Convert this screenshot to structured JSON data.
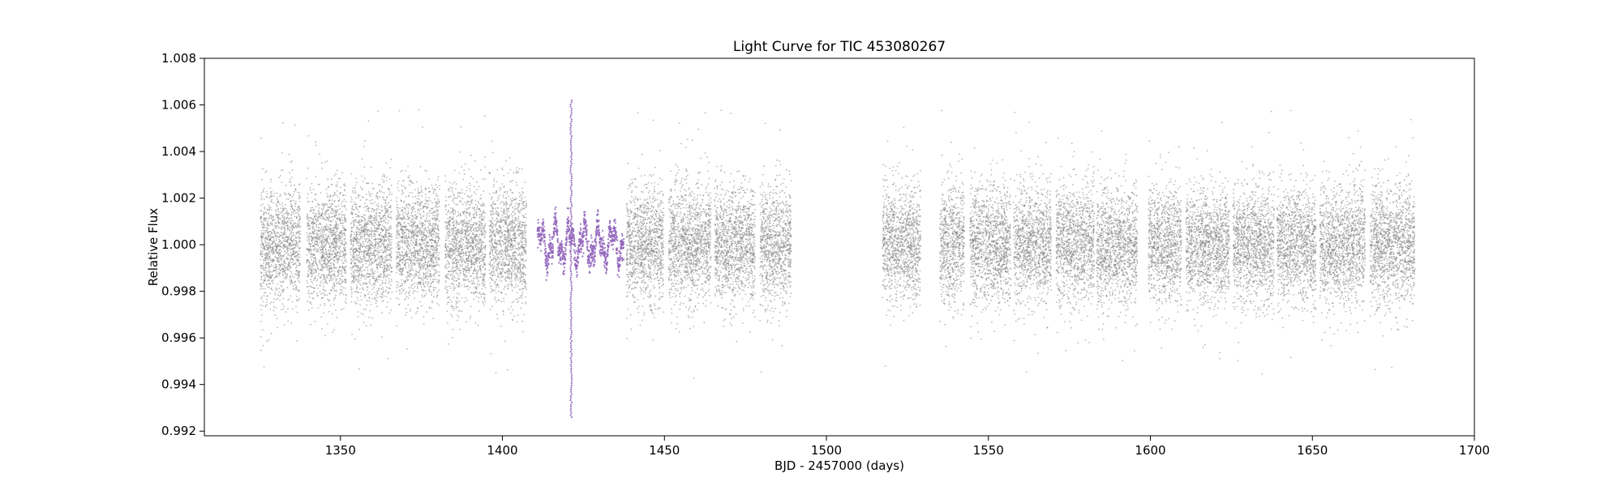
{
  "chart_data": {
    "type": "scatter",
    "title": "Light Curve for TIC 453080267",
    "xlabel": "BJD - 2457000 (days)",
    "ylabel": "Relative Flux",
    "xlim": [
      1308,
      1700
    ],
    "ylim": [
      0.9918,
      1.008
    ],
    "x_ticks": [
      1350,
      1400,
      1450,
      1500,
      1550,
      1600,
      1650,
      1700
    ],
    "y_ticks": [
      0.992,
      0.994,
      0.996,
      0.998,
      1.0,
      1.002,
      1.004,
      1.006,
      1.008
    ],
    "x_tick_labels": [
      "1350",
      "1400",
      "1450",
      "1500",
      "1550",
      "1600",
      "1650",
      "1700"
    ],
    "y_tick_labels": [
      "0.992",
      "0.994",
      "0.996",
      "0.998",
      "1.000",
      "1.002",
      "1.004",
      "1.006",
      "1.008"
    ],
    "grid": false,
    "series": [
      {
        "color": "#808080",
        "center": 1.0,
        "core_range": [
          0.9975,
          1.0025
        ],
        "segments": [
          [
            1325.3,
            1337.6
          ],
          [
            1339.6,
            1351.8
          ],
          [
            1353.1,
            1365.9
          ],
          [
            1367.2,
            1380.6
          ],
          [
            1382.3,
            1394.8
          ],
          [
            1395.9,
            1407.4
          ],
          [
            1438.3,
            1449.8
          ],
          [
            1451.3,
            1464.4
          ],
          [
            1465.5,
            1478.0
          ],
          [
            1479.5,
            1489.1
          ],
          [
            1517.3,
            1529.1
          ],
          [
            1535.0,
            1542.6
          ],
          [
            1544.3,
            1556.9
          ],
          [
            1557.8,
            1569.4
          ],
          [
            1570.9,
            1582.7
          ],
          [
            1583.4,
            1596.0
          ],
          [
            1599.4,
            1609.6
          ],
          [
            1611.0,
            1624.4
          ],
          [
            1625.5,
            1638.2
          ],
          [
            1639.1,
            1651.1
          ],
          [
            1652.3,
            1666.3
          ],
          [
            1667.8,
            1681.6
          ]
        ]
      },
      {
        "color": "#9467bd",
        "center": 1.0,
        "core_range": [
          0.9985,
          1.0015
        ],
        "segments": [
          [
            1410.8,
            1437.5
          ]
        ],
        "spike": {
          "x": 1421.2,
          "y_range": [
            0.9926,
            1.0062
          ]
        }
      }
    ]
  }
}
